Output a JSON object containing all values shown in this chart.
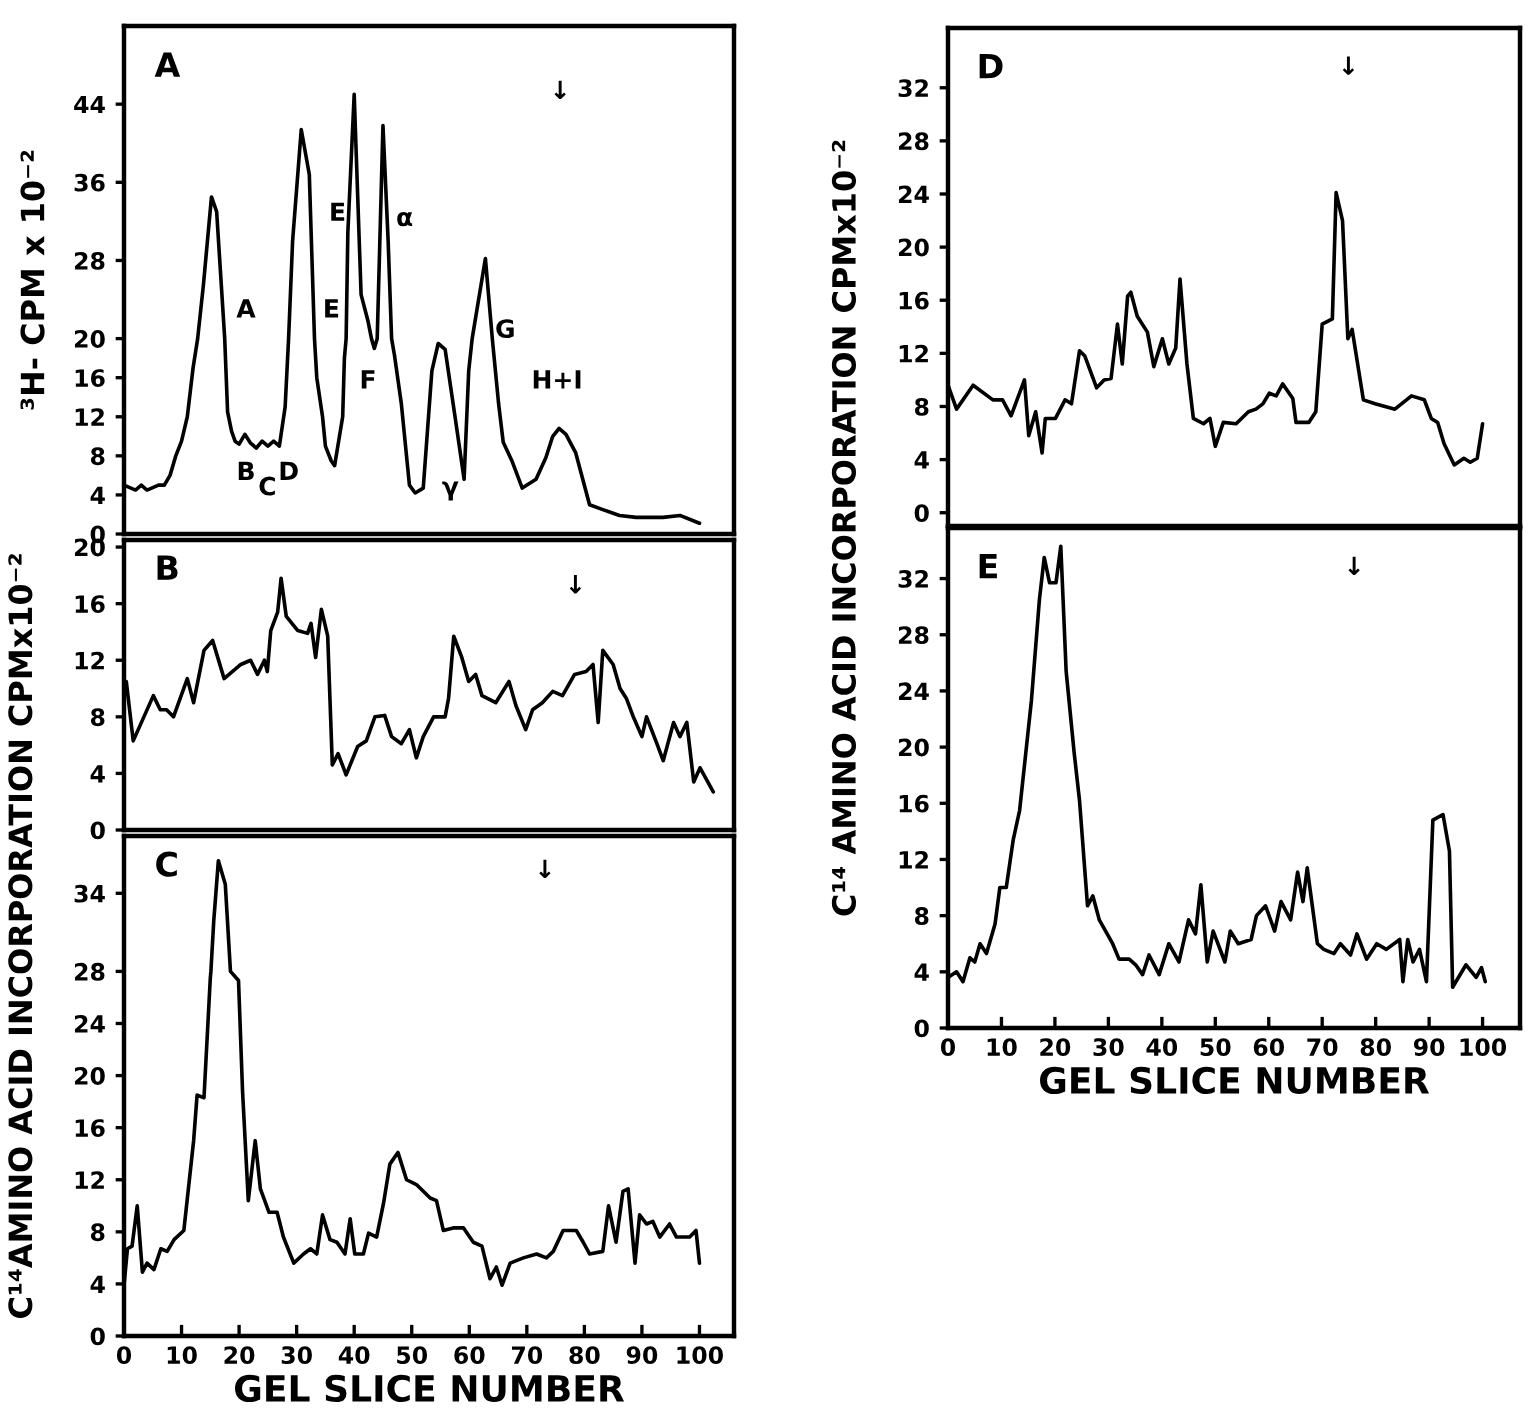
{
  "chart_data": [
    {
      "type": "line",
      "x": [
        0,
        2,
        3,
        4,
        6,
        7,
        8,
        9,
        10,
        11,
        12,
        12.8,
        13.8,
        15.2,
        16.1,
        17.5,
        18,
        18.7,
        19.3,
        20,
        21,
        22,
        23,
        24,
        25,
        26,
        27,
        28,
        28.6,
        29.3,
        30.8,
        32.2,
        33.1,
        33.5,
        34.5,
        35,
        36,
        36.6,
        38,
        38.3,
        38.6,
        38.9,
        40,
        41.2,
        42.4,
        43,
        43.5,
        44,
        45,
        45.9,
        46.5,
        47,
        48.2,
        49.6,
        50.6,
        52,
        53.5,
        54.6,
        55.8,
        57.6,
        59.1,
        59.9,
        60.5,
        62.8,
        64,
        65.1,
        65.9,
        67.4,
        69.2,
        71.6,
        73.3,
        74.5,
        75.6,
        76.8,
        78.5,
        80.9,
        83.2,
        86.1,
        89,
        93.7,
        96.6,
        100
      ],
      "series": [
        {
          "color": "#000000",
          "values": [
            5,
            4.5,
            5,
            4.5,
            5,
            5,
            6,
            8,
            9.5,
            12,
            17,
            20,
            25.5,
            34.5,
            33,
            20,
            12.5,
            10.5,
            9.5,
            9.2,
            10.2,
            9.3,
            8.8,
            9.5,
            9,
            9.5,
            9,
            13,
            20,
            30,
            41.4,
            36.8,
            20,
            16,
            12,
            9,
            7.5,
            7,
            12,
            18,
            20,
            30.9,
            45,
            24.5,
            21.8,
            20,
            19,
            20,
            41.8,
            30,
            20,
            18.3,
            13.3,
            5,
            4.2,
            4.7,
            16.7,
            19.5,
            18.9,
            11.7,
            5.6,
            16.7,
            20,
            28.2,
            20,
            13.3,
            9.4,
            7.5,
            4.7,
            5.6,
            7.8,
            10,
            10.8,
            10.2,
            8.3,
            3,
            2.5,
            1.9,
            1.7,
            1.7,
            1.9,
            1.1
          ]
        }
      ],
      "xlim": [
        0,
        106
      ],
      "ylim": [
        0,
        52
      ],
      "yticks": [
        0,
        4,
        8,
        12,
        16,
        20,
        28,
        36,
        44
      ],
      "tick_labels": "y",
      "ylabel": "³H- CPM x 10⁻²",
      "annotations": [
        "A",
        "↓",
        "E",
        "α",
        "A",
        "E",
        "F",
        "G",
        "B",
        "C",
        "D",
        "γ",
        "H+I"
      ]
    },
    {
      "type": "line",
      "x": [
        0.4,
        1.6,
        5.1,
        6.3,
        7.4,
        8.6,
        11,
        12.1,
        13.9,
        15.4,
        17.4,
        20.3,
        22,
        23.2,
        24.4,
        24.9,
        25.5,
        26.7,
        27.3,
        28.2,
        30.2,
        31.9,
        32.5,
        33.3,
        34.3,
        35.4,
        36.2,
        37.2,
        38.6,
        40.6,
        42.1,
        43.6,
        45.3,
        46.5,
        48.2,
        49.6,
        50.8,
        52,
        53.8,
        55.8,
        56.4,
        57.3,
        58.7,
        59.9,
        61.1,
        62.2,
        64.6,
        66.9,
        68.1,
        69.8,
        71,
        72.7,
        74.5,
        76.2,
        78.3,
        80.3,
        81.5,
        82.4,
        83.2,
        85,
        86.2,
        87.3,
        88.5,
        90,
        90.8,
        92.6,
        93.7,
        95.5,
        96.6,
        97.8,
        99,
        100.1,
        102.4
      ],
      "series": [
        {
          "color": "#000000",
          "values": [
            10.5,
            6.3,
            9.5,
            8.5,
            8.5,
            8,
            10.7,
            9,
            12.7,
            13.4,
            10.7,
            11.7,
            12,
            11,
            12,
            11.2,
            14.1,
            15.4,
            17.8,
            15.1,
            14.1,
            13.9,
            14.6,
            12.2,
            15.6,
            13.7,
            4.6,
            5.4,
            3.9,
            5.9,
            6.3,
            8,
            8.1,
            6.6,
            6.1,
            7.1,
            5.1,
            6.6,
            8,
            8,
            9.3,
            13.7,
            12.2,
            10.5,
            11,
            9.5,
            9,
            10.5,
            8.8,
            7.1,
            8.5,
            9,
            9.8,
            9.5,
            11,
            11.2,
            11.7,
            7.6,
            12.7,
            11.7,
            10,
            9.3,
            8,
            6.6,
            8,
            6.1,
            4.9,
            7.6,
            6.6,
            7.6,
            3.4,
            4.4,
            2.7
          ]
        }
      ],
      "xlim": [
        0,
        106
      ],
      "ylim": [
        0,
        20.5
      ],
      "yticks": [
        0,
        4,
        8,
        12,
        16,
        20
      ],
      "tick_labels": "y",
      "annotations": [
        "B",
        "↓"
      ]
    },
    {
      "type": "line",
      "x": [
        0,
        0.6,
        1.4,
        2.3,
        3.2,
        4,
        5.2,
        6.4,
        7.5,
        8.7,
        10.4,
        12.1,
        12.7,
        13.9,
        15,
        15.1,
        15.6,
        16.4,
        17.6,
        18.5,
        19.9,
        20.6,
        21.6,
        22.8,
        23.7,
        25.2,
        26.6,
        27.7,
        29.5,
        31.2,
        32.4,
        33.5,
        34.5,
        35.8,
        37,
        38.4,
        39.3,
        40.1,
        41.6,
        42.5,
        43.9,
        45.1,
        46.2,
        47.6,
        49.1,
        50.9,
        53.2,
        54.3,
        55.5,
        57.2,
        59,
        60.7,
        62.2,
        63.6,
        64.7,
        65.7,
        67.1,
        69.4,
        71.7,
        73.4,
        74.6,
        76.3,
        78.6,
        79.8,
        80.9,
        83.2,
        84.2,
        85.5,
        86.7,
        87.6,
        88.8,
        89.6,
        90.8,
        91.9,
        93.1,
        94.8,
        96,
        98.3,
        99.4,
        100
      ],
      "series": [
        {
          "color": "#000000",
          "values": [
            3.9,
            6.7,
            6.9,
            10,
            4.9,
            5.6,
            5.1,
            6.7,
            6.5,
            7.4,
            8.1,
            15,
            18.5,
            18.3,
            27.5,
            28,
            31.9,
            36.5,
            34.7,
            28,
            27.3,
            18.8,
            10.4,
            15,
            11.3,
            9.5,
            9.5,
            7.6,
            5.6,
            6.3,
            6.7,
            6.3,
            9.3,
            7.4,
            7.2,
            6.3,
            9,
            6.3,
            6.3,
            7.9,
            7.6,
            10.2,
            13.2,
            14.1,
            12,
            11.6,
            10.6,
            10.4,
            8.1,
            8.3,
            8.3,
            7.2,
            6.9,
            4.4,
            5.3,
            3.9,
            5.6,
            6,
            6.3,
            6,
            6.5,
            8.1,
            8.1,
            7.2,
            6.3,
            6.5,
            10,
            7.2,
            11.1,
            11.3,
            5.6,
            9.3,
            8.6,
            8.8,
            7.6,
            8.6,
            7.6,
            7.6,
            8.1,
            5.6
          ]
        }
      ],
      "xlim": [
        0,
        106
      ],
      "ylim": [
        0,
        38.4
      ],
      "yticks": [
        0,
        4,
        8,
        12,
        16,
        20,
        24,
        28,
        34
      ],
      "xticks": [
        0,
        10,
        20,
        30,
        40,
        50,
        60,
        70,
        80,
        90,
        100
      ],
      "xlabel": "GEL SLICE NUMBER",
      "ylabel": "C¹⁴AMINO ACID INCORPORATION CPMx10⁻²",
      "annotations": [
        "C",
        "↓"
      ]
    },
    {
      "type": "line",
      "x": [
        0,
        1.6,
        4.7,
        8.4,
        10.2,
        11.8,
        14.3,
        15.1,
        16.4,
        17.6,
        18.2,
        20.1,
        21.9,
        23.1,
        24.6,
        25.6,
        27.8,
        29.2,
        30.5,
        31.7,
        32.6,
        33.6,
        34.2,
        35.4,
        37.3,
        38.5,
        40.1,
        41.3,
        42.6,
        43.4,
        44.7,
        45.9,
        47.8,
        49,
        50,
        51.5,
        53.9,
        56.2,
        57.6,
        58.9,
        60.1,
        61.4,
        62.6,
        64.5,
        65.1,
        67.5,
        68.8,
        70,
        71.9,
        72.6,
        73.8,
        74.8,
        75.6,
        77.7,
        79.9,
        83.6,
        86.7,
        89.1,
        90.4,
        91.6,
        92.8,
        94.7,
        96.5,
        97.7,
        99,
        100
      ],
      "series": [
        {
          "color": "#000000",
          "values": [
            9.6,
            7.8,
            9.6,
            8.5,
            8.5,
            7.3,
            10,
            5.8,
            7.6,
            4.5,
            7.1,
            7.1,
            8.5,
            8.2,
            12.2,
            11.8,
            9.4,
            10,
            10.1,
            14.2,
            11.2,
            16.3,
            16.6,
            14.8,
            13.6,
            11,
            13.1,
            11.2,
            12.4,
            17.6,
            11.2,
            7.1,
            6.7,
            7.1,
            5,
            6.8,
            6.7,
            7.6,
            7.8,
            8.2,
            9,
            8.8,
            9.7,
            8.6,
            6.8,
            6.8,
            7.6,
            14.2,
            14.6,
            24.1,
            22,
            13.1,
            13.8,
            8.5,
            8.2,
            7.8,
            8.8,
            8.5,
            7.1,
            6.8,
            5.2,
            3.6,
            4.1,
            3.8,
            4.1,
            6.7
          ]
        }
      ],
      "xlim": [
        0,
        107
      ],
      "ylim": [
        -1,
        36.5
      ],
      "yticks": [
        0,
        4,
        8,
        12,
        16,
        20,
        24,
        28,
        32
      ],
      "tick_labels": "y",
      "annotations": [
        "D",
        "↓"
      ]
    },
    {
      "type": "line",
      "x": [
        0,
        1.6,
        2.8,
        4.1,
        5,
        6,
        7.2,
        8.8,
        9.7,
        10.9,
        12.2,
        13.4,
        15.6,
        17.1,
        18,
        19,
        20.2,
        21.1,
        22.1,
        23.6,
        24.6,
        26.1,
        27.1,
        28.3,
        30.8,
        32,
        33.9,
        35.1,
        36.4,
        37.6,
        39.5,
        41.3,
        43.2,
        45,
        46.3,
        47.3,
        48.5,
        49.6,
        51.8,
        52.8,
        54.3,
        56.7,
        57.7,
        59.4,
        61.1,
        62.3,
        64.1,
        65.4,
        66.4,
        67.2,
        69.1,
        70.3,
        72.2,
        73.4,
        75.3,
        76.5,
        78.3,
        80.2,
        82,
        84.5,
        85.1,
        86,
        87,
        88.2,
        89.5,
        90.7,
        92.6,
        93.8,
        94.4,
        96.9,
        98.8,
        99.8,
        100.5
      ],
      "series": [
        {
          "color": "#000000",
          "values": [
            3.6,
            4,
            3.3,
            5,
            4.7,
            6,
            5.3,
            7.4,
            10,
            10,
            13.4,
            15.5,
            23.3,
            30.5,
            33.5,
            31.7,
            31.7,
            34.3,
            25.4,
            19.6,
            16.2,
            8.7,
            9.4,
            7.7,
            6,
            4.9,
            4.9,
            4.5,
            3.8,
            5.2,
            3.8,
            6,
            4.7,
            7.7,
            6.7,
            10.2,
            4.7,
            6.9,
            4.7,
            6.9,
            6,
            6.3,
            8,
            8.7,
            6.9,
            9,
            7.7,
            11.1,
            9,
            11.4,
            6,
            5.6,
            5.3,
            6,
            5.2,
            6.7,
            4.9,
            6,
            5.6,
            6.3,
            3.3,
            6.3,
            4.7,
            5.6,
            3.3,
            14.8,
            15.2,
            12.6,
            2.9,
            4.5,
            3.6,
            4.3,
            3.3
          ]
        }
      ],
      "xlim": [
        0,
        107
      ],
      "ylim": [
        0,
        35.6
      ],
      "yticks": [
        0,
        4,
        8,
        12,
        16,
        20,
        24,
        28,
        32
      ],
      "xticks": [
        0,
        10,
        20,
        30,
        40,
        50,
        60,
        70,
        80,
        90,
        100
      ],
      "xlabel": "GEL SLICE NUMBER",
      "ylabel": "C¹⁴ AMINO ACID INCORPORATION CPMx10⁻²",
      "annotations": [
        "E",
        "↓"
      ]
    }
  ]
}
